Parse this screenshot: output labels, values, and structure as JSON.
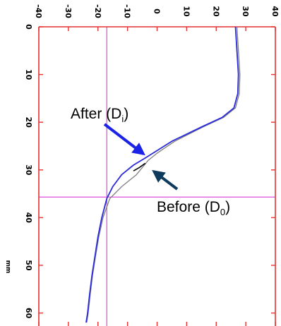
{
  "chart_data": {
    "type": "line",
    "orientation": "rotated: top axis is horizontal offset, left axis is depth increasing downward",
    "x_axis": {
      "ticks": [
        "-40",
        "-30",
        "-20",
        "-10",
        "0",
        "10",
        "20",
        "30",
        "40"
      ],
      "values": [
        -40,
        -30,
        -20,
        -10,
        0,
        10,
        20,
        30,
        40
      ],
      "range": [
        -40,
        40
      ],
      "label_orientation": "rotated 90 degrees clockwise"
    },
    "y_axis": {
      "ticks": [
        "0",
        "10",
        "20",
        "30",
        "40",
        "50",
        "60"
      ],
      "values": [
        0,
        10,
        20,
        30,
        40,
        50,
        60
      ],
      "range": [
        0,
        62
      ],
      "unit": "mm",
      "direction": "downward",
      "label_orientation": "rotated 90 degrees clockwise"
    },
    "reference_lines": [
      {
        "orientation": "vertical",
        "x": -17,
        "color": "#e060e0"
      },
      {
        "orientation": "horizontal",
        "y": 35.7,
        "color": "#e060e0"
      }
    ],
    "series": [
      {
        "name": "After (Di)",
        "color": "#2b2bd9",
        "points": [
          [
            26.5,
            0
          ],
          [
            27,
            5
          ],
          [
            27.5,
            10
          ],
          [
            27.3,
            14
          ],
          [
            26,
            17
          ],
          [
            22,
            19
          ],
          [
            15,
            21
          ],
          [
            5,
            24
          ],
          [
            -4,
            27.5
          ],
          [
            -8,
            29
          ],
          [
            -12,
            31
          ],
          [
            -15,
            33.5
          ],
          [
            -17,
            36
          ],
          [
            -18.7,
            40
          ],
          [
            -20,
            44
          ],
          [
            -21,
            48
          ],
          [
            -22,
            52
          ],
          [
            -22.8,
            56
          ],
          [
            -23.5,
            60
          ],
          [
            -24,
            62
          ]
        ]
      },
      {
        "name": "Before (D0)",
        "color": "#808080",
        "points": [
          [
            27,
            0
          ],
          [
            27.5,
            5
          ],
          [
            28,
            10
          ],
          [
            27.8,
            14
          ],
          [
            26.5,
            17
          ],
          [
            22.5,
            19
          ],
          [
            15.5,
            21
          ],
          [
            6,
            24
          ],
          [
            0,
            26.5
          ],
          [
            -3,
            28
          ],
          [
            -7,
            31
          ],
          [
            -12,
            33.5
          ],
          [
            -16,
            36
          ],
          [
            -18.3,
            40
          ],
          [
            -19.7,
            44
          ],
          [
            -20.8,
            48
          ],
          [
            -21.8,
            52
          ],
          [
            -22.6,
            56
          ],
          [
            -23.3,
            60
          ],
          [
            -23.8,
            62
          ]
        ]
      }
    ],
    "annotations": [
      {
        "label": "After (D",
        "subscript": "i",
        "suffix": ")",
        "arrow_color": "#1a23e6",
        "points_to_series": "After (Di)"
      },
      {
        "label": "Before (D",
        "subscript": "0",
        "suffix": ")",
        "arrow_color": "#0e3a5c",
        "points_to_series": "Before (D0)"
      }
    ],
    "colors": {
      "frame": "#e83030",
      "reference": "#e060e0",
      "after_arrow": "#1a23e6",
      "before_arrow": "#0e3a5c"
    }
  }
}
